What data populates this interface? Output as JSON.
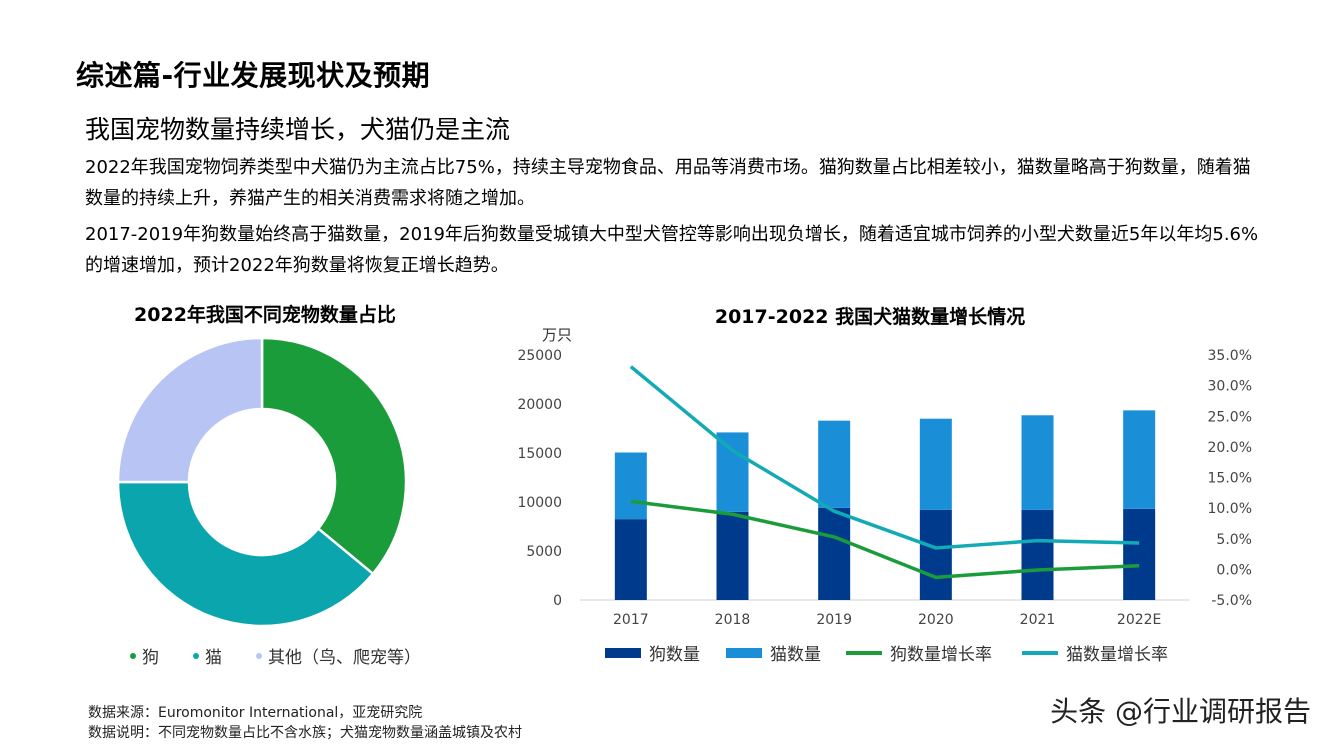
{
  "page": {
    "section_title": "综述篇-行业发展现状及预期",
    "headline": "我国宠物数量持续增长，犬猫仍是主流",
    "para1": "2022年我国宠物饲养类型中犬猫仍为主流占比75%，持续主导宠物食品、用品等消费市场。猫狗数量占比相差较小，猫数量略高于狗数量，随着猫数量的持续上升，养猫产生的相关消费需求将随之增加。",
    "para2": "2017-2019年狗数量始终高于猫数量，2019年后狗数量受城镇大中型犬管控等影响出现负增长，随着适宜城市饲养的小型犬数量近5年以年均5.6%的增速增加，预计2022年狗数量将恢复正增长趋势。",
    "source": "数据来源：Euromonitor International，亚宠研究院",
    "note": "数据说明：不同宠物数量占比不含水族；犬猫宠物数量涵盖城镇及农村",
    "watermark": "头条 @行业调研报告"
  },
  "colors": {
    "dog": "#1a9c3b",
    "cat": "#0aa5ad",
    "other": "#b8c4f4",
    "dog_bar": "#003a8c",
    "cat_bar": "#1a8fd8",
    "dog_rate": "#1a9c3b",
    "cat_rate": "#11aab5"
  },
  "chart_data": [
    {
      "type": "pie",
      "title": "2022年我国不同宠物数量占比",
      "categories": [
        "狗",
        "猫",
        "其他（鸟、爬宠等）"
      ],
      "values": [
        36,
        39,
        25
      ]
    },
    {
      "type": "bar",
      "title": "2017-2022 我国犬猫数量增长情况",
      "ylabel": "万只",
      "ylim": [
        0,
        25000
      ],
      "y2lim": [
        -0.05,
        0.35
      ],
      "yticks": [
        "0",
        "5000",
        "10000",
        "15000",
        "20000",
        "25000"
      ],
      "y2ticks": [
        "-5.0%",
        "0.0%",
        "5.0%",
        "10.0%",
        "15.0%",
        "20.0%",
        "25.0%",
        "30.0%",
        "35.0%"
      ],
      "categories": [
        "2017",
        "2018",
        "2019",
        "2020",
        "2021",
        "2022E"
      ],
      "series": [
        {
          "name": "狗数量",
          "kind": "stacked-bar",
          "values": [
            8250,
            9000,
            9400,
            9200,
            9200,
            9300
          ]
        },
        {
          "name": "猫数量",
          "kind": "stacked-bar",
          "values": [
            6800,
            8100,
            8900,
            9300,
            9650,
            10050
          ]
        },
        {
          "name": "狗数量增长率",
          "kind": "line",
          "axis": "right",
          "values": [
            0.111,
            0.09,
            0.053,
            -0.013,
            -0.001,
            0.006
          ]
        },
        {
          "name": "猫数量增长率",
          "kind": "line",
          "axis": "right",
          "values": [
            0.331,
            0.194,
            0.095,
            0.035,
            0.047,
            0.043
          ]
        }
      ]
    }
  ]
}
